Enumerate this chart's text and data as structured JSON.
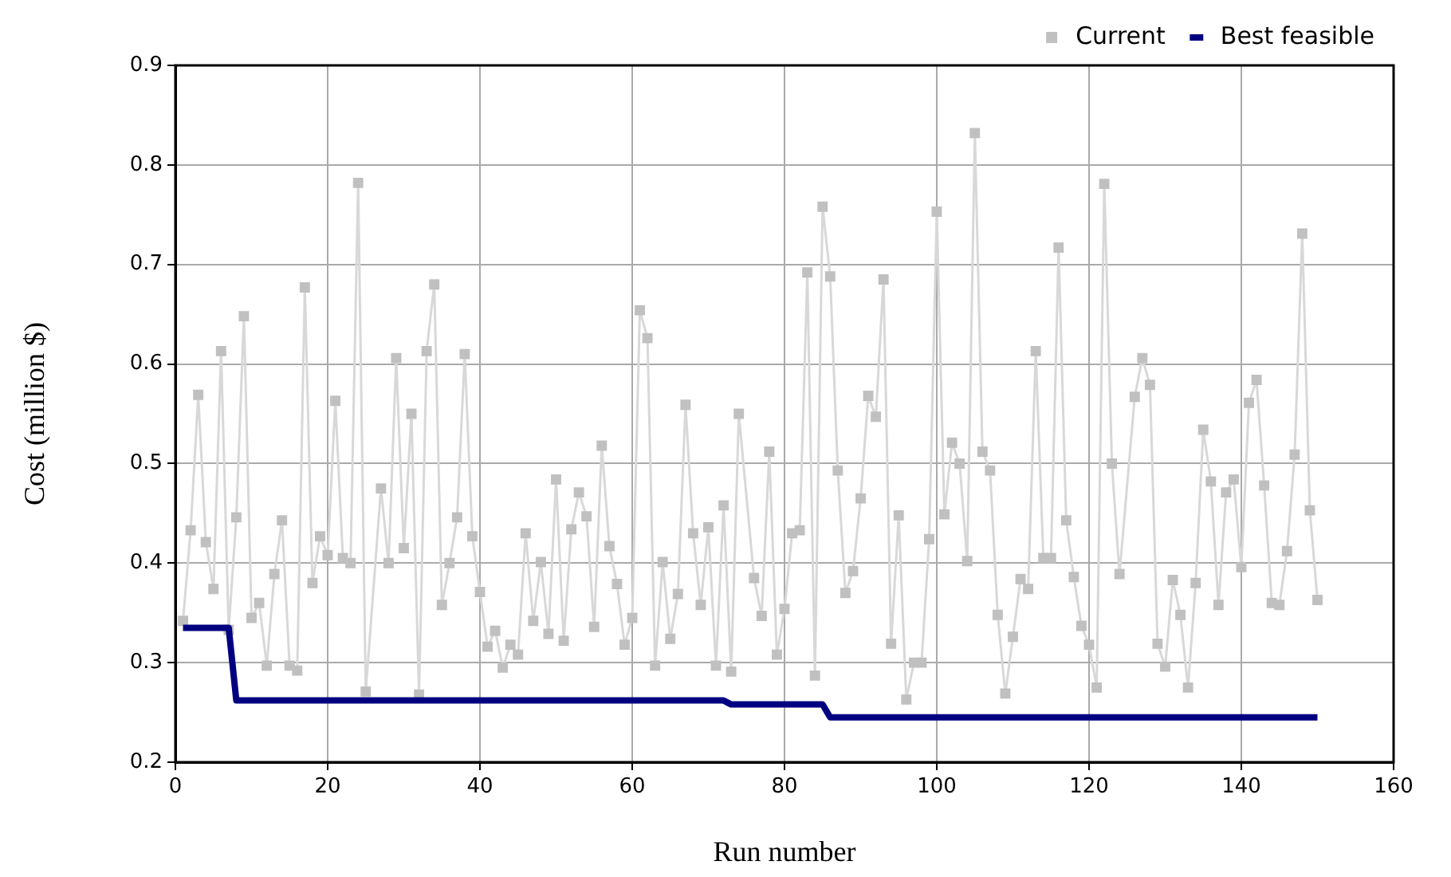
{
  "chart_data": {
    "type": "line",
    "xlabel": "Run number",
    "ylabel": "Cost (million $)",
    "xlim": [
      0,
      160
    ],
    "xticks": [
      0,
      20,
      40,
      60,
      80,
      100,
      120,
      140,
      160
    ],
    "ylim": [
      0.2,
      0.9
    ],
    "yticks": [
      0.2,
      0.3,
      0.4,
      0.5,
      0.6,
      0.7,
      0.8,
      0.9
    ],
    "grid": true,
    "legend": "top right",
    "series": [
      {
        "name": "Current",
        "color": "#c0c0c0",
        "marker": "square",
        "x": [
          1,
          2,
          3,
          4,
          5,
          6,
          7,
          8,
          9,
          10,
          11,
          12,
          13,
          14,
          15,
          16,
          17,
          18,
          19,
          20,
          21,
          22,
          23,
          24,
          25,
          27,
          28,
          29,
          30,
          31,
          32,
          33,
          34,
          35,
          36,
          37,
          38,
          39,
          40,
          41,
          42,
          43,
          44,
          45,
          46,
          47,
          48,
          49,
          50,
          51,
          52,
          53,
          54,
          55,
          56,
          57,
          58,
          59,
          60,
          61,
          62,
          63,
          64,
          65,
          66,
          67,
          68,
          69,
          70,
          71,
          72,
          73,
          74,
          76,
          77,
          78,
          79,
          80,
          81,
          82,
          83,
          84,
          85,
          86,
          87,
          88,
          89,
          90,
          91,
          92,
          93,
          94,
          95,
          96,
          97,
          98,
          99,
          100,
          101,
          102,
          103,
          104,
          105,
          106,
          107,
          108,
          109,
          110,
          111,
          112,
          113,
          114,
          115,
          116,
          117,
          118,
          119,
          120,
          121,
          122,
          123,
          124,
          126,
          127,
          128,
          129,
          130,
          131,
          132,
          133,
          134,
          135,
          136,
          137,
          138,
          139,
          140,
          141,
          142,
          143,
          144,
          145,
          146,
          147,
          148,
          149,
          150
        ],
        "values": [
          0.342,
          0.433,
          0.569,
          0.421,
          0.374,
          0.613,
          0.333,
          0.446,
          0.648,
          0.345,
          0.36,
          0.297,
          0.389,
          0.443,
          0.297,
          0.292,
          0.677,
          0.38,
          0.427,
          0.408,
          0.563,
          0.405,
          0.4,
          0.782,
          0.271,
          0.475,
          0.4,
          0.606,
          0.415,
          0.55,
          0.268,
          0.613,
          0.68,
          0.358,
          0.4,
          0.446,
          0.61,
          0.427,
          0.371,
          0.316,
          0.332,
          0.295,
          0.318,
          0.308,
          0.43,
          0.342,
          0.401,
          0.329,
          0.484,
          0.322,
          0.434,
          0.471,
          0.447,
          0.336,
          0.518,
          0.417,
          0.379,
          0.318,
          0.345,
          0.654,
          0.626,
          0.297,
          0.401,
          0.324,
          0.369,
          0.559,
          0.43,
          0.358,
          0.436,
          0.297,
          0.458,
          0.291,
          0.55,
          0.385,
          0.347,
          0.512,
          0.308,
          0.354,
          0.43,
          0.433,
          0.692,
          0.287,
          0.758,
          0.688,
          0.493,
          0.37,
          0.392,
          0.465,
          0.568,
          0.547,
          0.685,
          0.319,
          0.448,
          0.263,
          0.3,
          0.3,
          0.424,
          0.753,
          0.449,
          0.521,
          0.5,
          0.402,
          0.832,
          0.512,
          0.493,
          0.348,
          0.269,
          0.326,
          0.384,
          0.374,
          0.613,
          0.405,
          0.405,
          0.717,
          0.443,
          0.386,
          0.337,
          0.318,
          0.275,
          0.781,
          0.5,
          0.389,
          0.567,
          0.606,
          0.579,
          0.319,
          0.296,
          0.383,
          0.348,
          0.275,
          0.38,
          0.534,
          0.482,
          0.358,
          0.471,
          0.484,
          0.396,
          0.561,
          0.584,
          0.478,
          0.36,
          0.358,
          0.412,
          0.509,
          0.731,
          0.453,
          0.363
        ]
      },
      {
        "name": "Best feasible",
        "color": "#000080",
        "marker": "none",
        "x": [
          1,
          7,
          8,
          72,
          73,
          85,
          86,
          150
        ],
        "values": [
          0.335,
          0.335,
          0.262,
          0.262,
          0.258,
          0.258,
          0.245,
          0.245
        ]
      }
    ]
  }
}
